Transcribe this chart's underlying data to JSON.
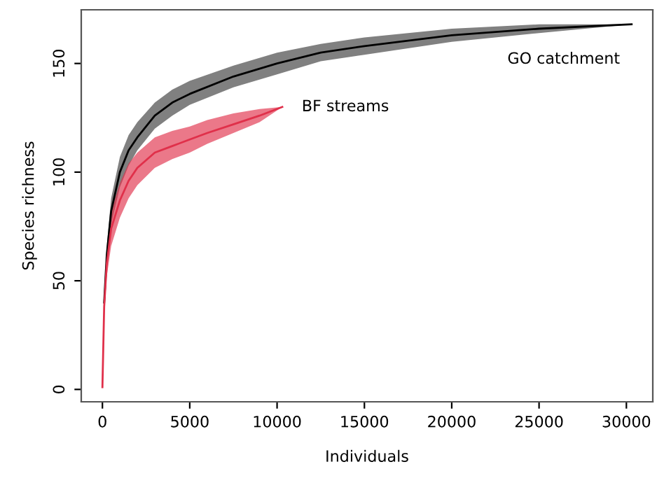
{
  "chart_data": {
    "type": "line",
    "xlabel": "Individuals",
    "ylabel": "Species richness",
    "xlim": [
      -1212,
      31512
    ],
    "ylim": [
      -5.7,
      174.7
    ],
    "xticks": [
      0,
      5000,
      10000,
      15000,
      20000,
      25000,
      30000
    ],
    "yticks": [
      0,
      50,
      100,
      150
    ],
    "grid": false,
    "legend": false,
    "series": [
      {
        "name": "GO catchment",
        "color": "#000000",
        "x": [
          0,
          100,
          250,
          500,
          1000,
          1500,
          2000,
          3000,
          4000,
          5000,
          7500,
          10000,
          12500,
          15000,
          20000,
          25000,
          30300
        ],
        "values": [
          null,
          40,
          62,
          82,
          100,
          110,
          116,
          126,
          132,
          136,
          144,
          150,
          155,
          158,
          163,
          166,
          168
        ],
        "lower": [
          1,
          38,
          58,
          76,
          93,
          103,
          110,
          120,
          126,
          131,
          139,
          145,
          151,
          154,
          160,
          164,
          168
        ],
        "upper": [
          1,
          42,
          66,
          88,
          107,
          117,
          123,
          132,
          138,
          142,
          149,
          155,
          159,
          162,
          166,
          168,
          168
        ]
      },
      {
        "name": "BF streams",
        "color": "#e0304a",
        "x": [
          0,
          100,
          250,
          500,
          1000,
          1500,
          2000,
          3000,
          4000,
          5000,
          6000,
          7500,
          9000,
          10300
        ],
        "values": [
          1,
          38,
          58,
          74,
          87,
          96,
          102,
          109,
          112,
          115,
          118,
          122,
          126,
          130
        ],
        "lower": [
          1,
          35,
          52,
          66,
          79,
          88,
          94,
          102,
          106,
          109,
          113,
          118,
          123,
          130
        ],
        "upper": [
          1,
          41,
          64,
          82,
          95,
          104,
          109,
          116,
          119,
          121,
          124,
          127,
          129,
          130
        ]
      }
    ]
  }
}
